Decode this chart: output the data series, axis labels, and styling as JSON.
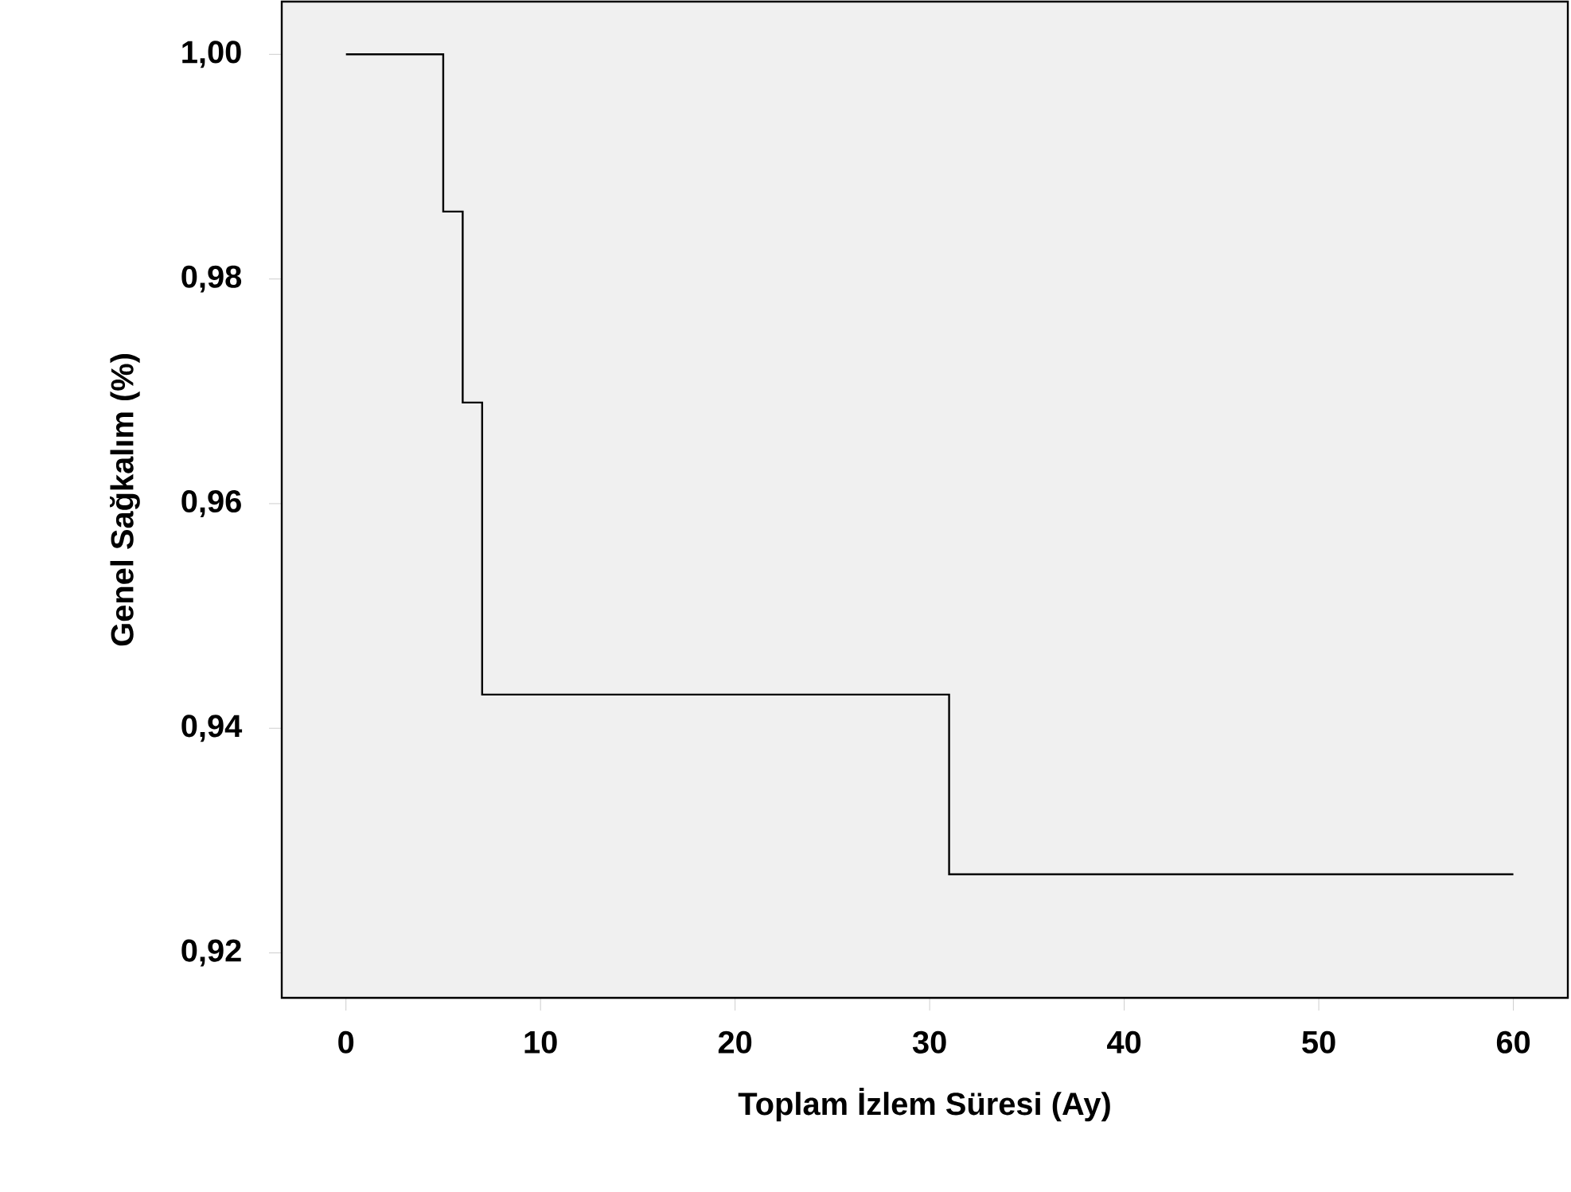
{
  "chart_data": {
    "type": "step",
    "xlabel": "Toplam İzlem Süresi (Ay)",
    "ylabel": "Genel Sağkalım (%)",
    "x": [
      0,
      5,
      6,
      7,
      31,
      60
    ],
    "values": [
      1.0,
      0.986,
      0.969,
      0.943,
      0.927,
      0.927
    ],
    "color": "#000000",
    "xlim": [
      -3.3,
      62.8
    ],
    "ylim": [
      0.916,
      1.0047
    ],
    "xticks": [
      0,
      10,
      20,
      30,
      40,
      50,
      60
    ],
    "yticks": [
      {
        "value": 0.92,
        "label": "0,92"
      },
      {
        "value": 0.94,
        "label": "0,94"
      },
      {
        "value": 0.96,
        "label": "0,96"
      },
      {
        "value": 0.98,
        "label": "0,98"
      },
      {
        "value": 1.0,
        "label": "1,00"
      }
    ]
  }
}
